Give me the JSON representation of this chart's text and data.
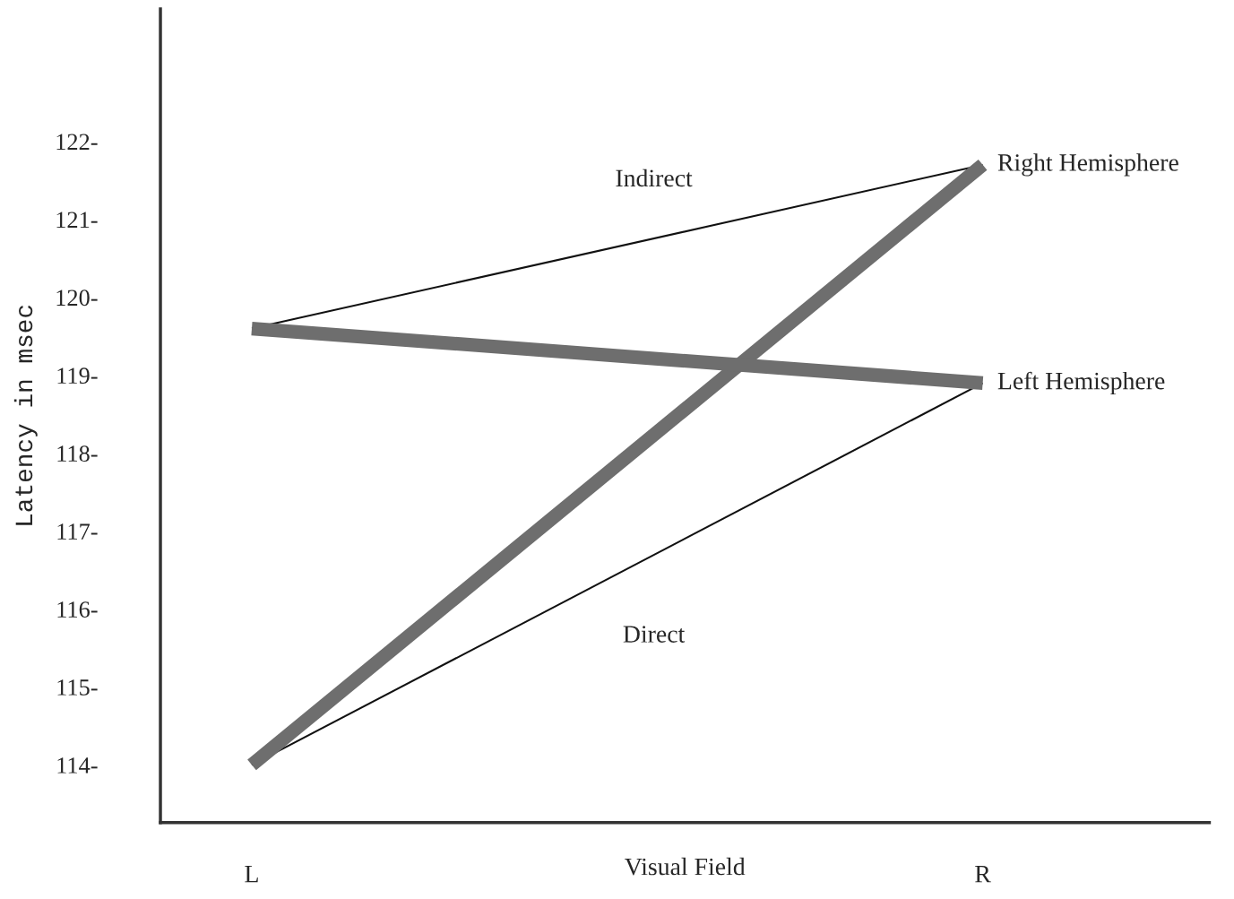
{
  "chart_data": {
    "type": "line",
    "xlabel": "Visual Field",
    "ylabel": "Latency in msec",
    "categories": [
      "L",
      "R"
    ],
    "ylim": [
      113.26,
      123.7
    ],
    "yticks": [
      {
        "value": 114,
        "label": "114-"
      },
      {
        "value": 115,
        "label": "115-"
      },
      {
        "value": 116,
        "label": "116-"
      },
      {
        "value": 117,
        "label": "117-"
      },
      {
        "value": 118,
        "label": "118-"
      },
      {
        "value": 119,
        "label": "119-"
      },
      {
        "value": 120,
        "label": "120-"
      },
      {
        "value": 121,
        "label": "121-"
      },
      {
        "value": 122,
        "label": "122-"
      }
    ],
    "grid": false,
    "legend": false,
    "marker": "none",
    "line_style": "solid",
    "series": [
      {
        "name": "Right Hemisphere",
        "color": "#6e6e6e",
        "values": [
          114.0,
          121.7
        ]
      },
      {
        "name": "Left Hemisphere",
        "color": "#6e6e6e",
        "values": [
          119.6,
          118.9
        ]
      },
      {
        "name": "Indirect",
        "color": "#111111",
        "values": [
          119.6,
          121.7
        ]
      },
      {
        "name": "Direct",
        "color": "#111111",
        "values": [
          114.0,
          118.9
        ]
      }
    ]
  }
}
